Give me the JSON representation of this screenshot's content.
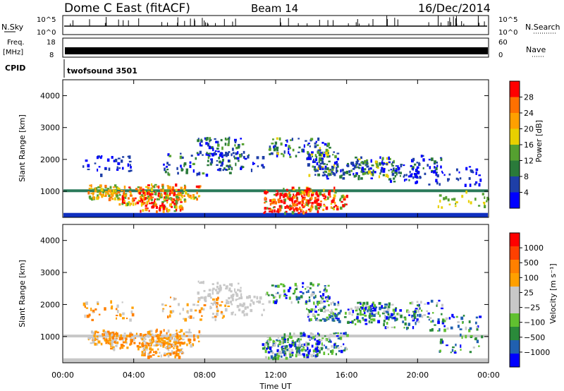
{
  "header": {
    "station": "Dome C East (fitACF)",
    "beam": "Beam 14",
    "date": "16/Dec/2014"
  },
  "summary_panels": {
    "nsky_label": "N.Sky",
    "nsearch_label": "N.Search",
    "nsky_ticks": [
      "10^5",
      "10^0"
    ],
    "nsearch_ticks": [
      "10^5",
      "10^0"
    ],
    "freq_label": "Freq.",
    "freq_unit": "[MHz]",
    "freq_ticks": [
      "18",
      "8"
    ],
    "nave_label": "Nave",
    "nave_ticks": [
      "60",
      "0"
    ],
    "cpid_label": "CPID",
    "cpid_value": "twofsound 3501"
  },
  "chart_data": [
    {
      "type": "heatmap",
      "name": "power",
      "ylabel": "Slant Range [km]",
      "xlabel": "",
      "colorbar_label": "Power [dB]",
      "colorbar_ticks": [
        "28",
        "24",
        "20",
        "16",
        "12",
        "8",
        "4"
      ],
      "colorbar_colors": [
        "#0000ff",
        "#1e3fa8",
        "#2a7a3a",
        "#55a030",
        "#e8d000",
        "#ffa000",
        "#ff7000",
        "#ff0000"
      ],
      "colorbar_range": [
        0,
        32
      ],
      "x_ticks": [
        "00:00",
        "04:00",
        "08:00",
        "12:00",
        "16:00",
        "20:00",
        "00:00"
      ],
      "xlim_hours": [
        0,
        24
      ],
      "y_ticks": [
        "1000",
        "2000",
        "3000",
        "4000"
      ],
      "ylim_km": [
        180,
        4500
      ],
      "grid": false
    },
    {
      "type": "heatmap",
      "name": "velocity",
      "ylabel": "Slant Range [km]",
      "xlabel": "Time UT",
      "colorbar_label": "Velocity [m s⁻¹]",
      "colorbar_ticks": [
        "1000",
        "500",
        "100",
        "25",
        "−25",
        "−100",
        "−500",
        "−1000"
      ],
      "colorbar_colors": [
        "#ff0000",
        "#ff4000",
        "#ff8000",
        "#ffa000",
        "#c8c8c8",
        "#c8c8c8",
        "#60c030",
        "#2a8a3a",
        "#2060b0",
        "#0000ff"
      ],
      "x_ticks": [
        "00:00",
        "04:00",
        "08:00",
        "12:00",
        "16:00",
        "20:00",
        "00:00"
      ],
      "xlim_hours": [
        0,
        24
      ],
      "y_ticks": [
        "1000",
        "2000",
        "3000",
        "4000"
      ],
      "ylim_km": [
        180,
        4500
      ],
      "grid": false
    }
  ]
}
